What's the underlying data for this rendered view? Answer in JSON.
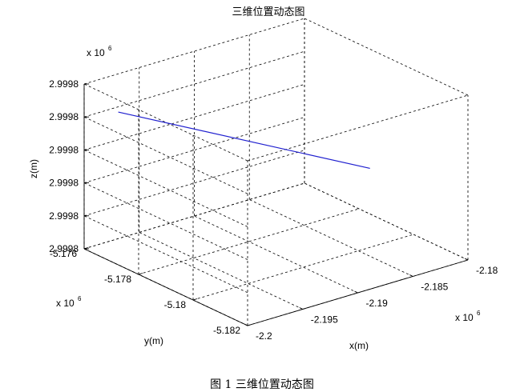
{
  "chart_data": {
    "type": "line3d",
    "title": "三维位置动态图",
    "xlabel": "x(m)",
    "ylabel": "y(m)",
    "zlabel": "z(m)",
    "x_multiplier": "x 10",
    "y_multiplier": "x 10",
    "z_multiplier": "x 10",
    "exponent": "6",
    "x_ticks": [
      -2.2,
      -2.195,
      -2.19,
      -2.185,
      -2.18
    ],
    "x_tick_labels": [
      "-2.2",
      "-2.195",
      "-2.19",
      "-2.185",
      "-2.18"
    ],
    "y_ticks": [
      -5.182,
      -5.18,
      -5.178,
      -5.176
    ],
    "y_tick_labels": [
      "-5.182",
      "-5.18",
      "-5.178",
      "-5.176"
    ],
    "z_tick_labels": [
      "2.9998",
      "2.9998",
      "2.9998",
      "2.9998",
      "2.9998",
      "2.9998"
    ],
    "xlim": [
      -2.2,
      -2.18
    ],
    "ylim": [
      -5.182,
      -5.176
    ],
    "zlim": [
      0,
      5
    ],
    "grid": true,
    "series": [
      {
        "color": "#1f1fcf",
        "x": [
          -2.1969,
          -2.1884
        ],
        "y": [
          -5.176,
          -5.1818
        ],
        "z": [
          3.84,
          3.54
        ]
      }
    ]
  },
  "caption": "图 1  三维位置动态图"
}
